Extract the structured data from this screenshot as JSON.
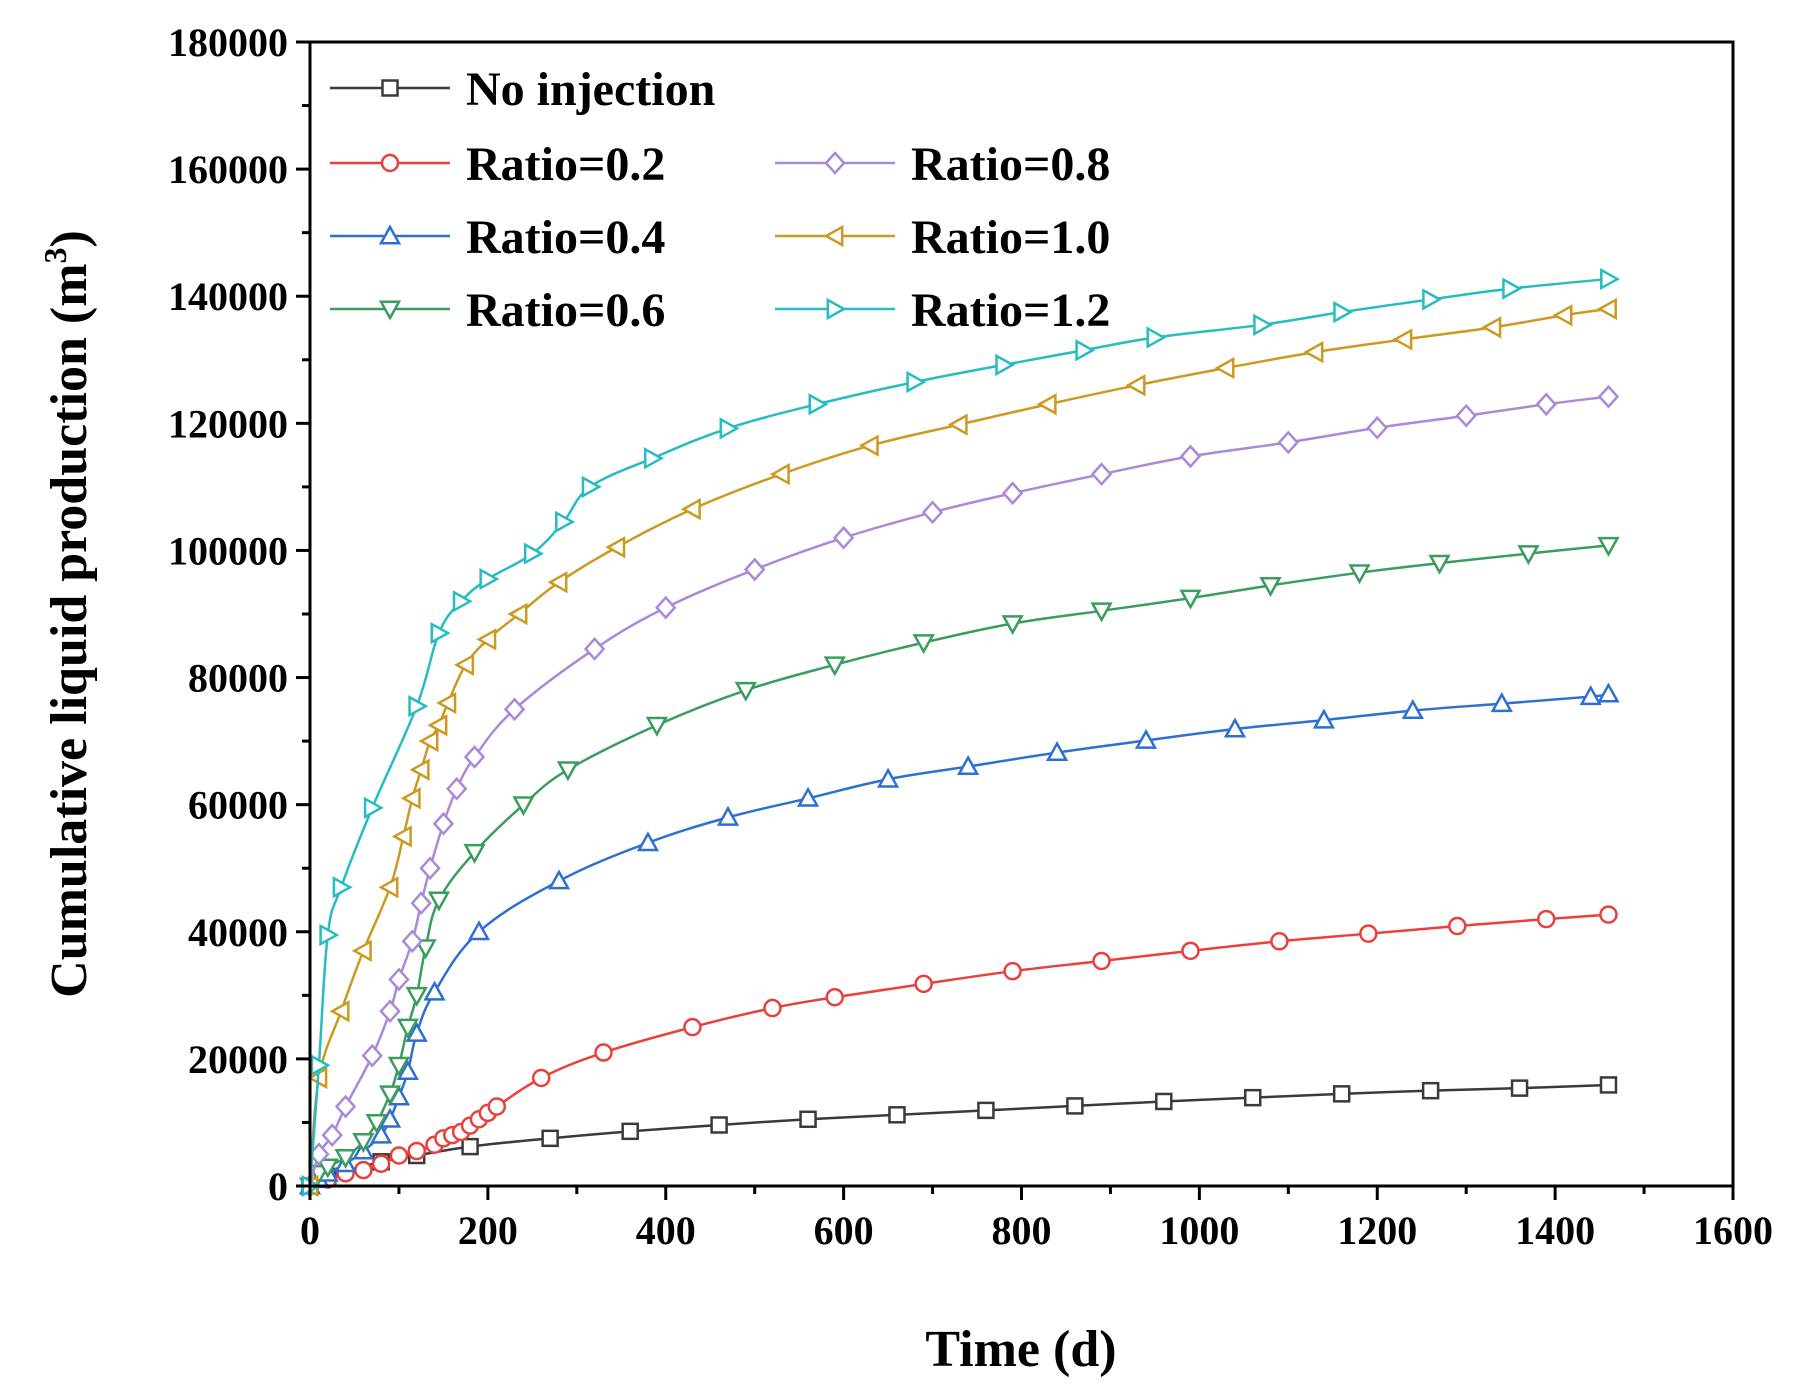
{
  "chart_data": {
    "type": "line",
    "title": "",
    "xlabel": "Time (d)",
    "ylabel": "Cumulative liquid production (m",
    "ylabel_sup": "3",
    "ylabel_close": ")",
    "xlim": [
      0,
      1600
    ],
    "ylim": [
      0,
      180000
    ],
    "x_ticks": [
      0,
      200,
      400,
      600,
      800,
      1000,
      1200,
      1400,
      1600
    ],
    "x_tick_labels": [
      "0",
      "200",
      "400",
      "600",
      "800",
      "1000",
      "1200",
      "1400",
      "1600"
    ],
    "y_ticks": [
      0,
      20000,
      40000,
      60000,
      80000,
      100000,
      120000,
      140000,
      160000,
      180000
    ],
    "y_tick_labels": [
      "0",
      "20000",
      "40000",
      "60000",
      "80000",
      "100000",
      "120000",
      "140000",
      "160000",
      "180000"
    ],
    "legend_position": "top-left",
    "series": [
      {
        "name": "No injection",
        "color": "#3a3a3a",
        "marker": "square",
        "x": [
          0,
          20,
          80,
          120,
          180,
          270,
          360,
          460,
          560,
          660,
          760,
          860,
          960,
          1060,
          1160,
          1260,
          1360,
          1460
        ],
        "y": [
          0,
          1500,
          3800,
          4800,
          6200,
          7500,
          8600,
          9600,
          10500,
          11200,
          11900,
          12600,
          13300,
          13900,
          14500,
          15000,
          15400,
          15900
        ]
      },
      {
        "name": "Ratio=0.2",
        "color": "#e8413c",
        "marker": "circle",
        "x": [
          0,
          20,
          40,
          60,
          80,
          100,
          120,
          140,
          150,
          160,
          170,
          180,
          190,
          200,
          210,
          260,
          330,
          430,
          520,
          590,
          690,
          790,
          890,
          990,
          1090,
          1190,
          1290,
          1390,
          1460
        ],
        "y": [
          0,
          1000,
          2000,
          2500,
          3500,
          4800,
          5500,
          6500,
          7500,
          8000,
          8500,
          9500,
          10500,
          11500,
          12500,
          17000,
          21000,
          25000,
          28000,
          29700,
          31800,
          33800,
          35400,
          37000,
          38500,
          39700,
          40900,
          42000,
          42700
        ]
      },
      {
        "name": "Ratio=0.4",
        "color": "#2e6fd0",
        "marker": "triangle-up",
        "x": [
          0,
          10,
          20,
          40,
          60,
          80,
          90,
          100,
          110,
          120,
          140,
          190,
          280,
          380,
          470,
          560,
          650,
          740,
          840,
          940,
          1040,
          1140,
          1240,
          1340,
          1440,
          1460
        ],
        "y": [
          0,
          1000,
          2000,
          3500,
          5500,
          8000,
          10500,
          14000,
          18000,
          24000,
          30500,
          40000,
          48000,
          54000,
          58000,
          61000,
          64000,
          66000,
          68200,
          70100,
          71900,
          73300,
          74800,
          75900,
          77000,
          77400
        ]
      },
      {
        "name": "Ratio=0.6",
        "color": "#3a9d5d",
        "marker": "triangle-down",
        "x": [
          0,
          10,
          20,
          40,
          60,
          75,
          90,
          100,
          110,
          120,
          130,
          145,
          185,
          240,
          290,
          390,
          490,
          590,
          690,
          790,
          890,
          990,
          1080,
          1180,
          1270,
          1370,
          1460
        ],
        "y": [
          0,
          2000,
          3000,
          4500,
          7000,
          10000,
          14500,
          19000,
          25000,
          30000,
          37500,
          45000,
          52500,
          60000,
          65500,
          72500,
          78000,
          82000,
          85500,
          88500,
          90500,
          92500,
          94500,
          96500,
          98000,
          99500,
          100800
        ]
      },
      {
        "name": "Ratio=0.8",
        "color": "#a989d8",
        "marker": "diamond",
        "x": [
          0,
          10,
          25,
          40,
          70,
          90,
          100,
          115,
          125,
          135,
          150,
          165,
          185,
          230,
          320,
          400,
          500,
          600,
          700,
          790,
          890,
          990,
          1100,
          1200,
          1300,
          1390,
          1460
        ],
        "y": [
          0,
          5000,
          8000,
          12500,
          20500,
          27500,
          32500,
          38500,
          44500,
          50000,
          57000,
          62500,
          67500,
          75000,
          84500,
          91000,
          97000,
          102000,
          106000,
          109000,
          112000,
          114800,
          117000,
          119300,
          121200,
          123000,
          124200
        ]
      },
      {
        "name": "Ratio=1.0",
        "color": "#cc9a22",
        "marker": "triangle-left",
        "x": [
          0,
          10,
          35,
          60,
          90,
          105,
          115,
          125,
          135,
          145,
          155,
          175,
          200,
          235,
          280,
          345,
          430,
          530,
          630,
          730,
          830,
          930,
          1030,
          1130,
          1230,
          1330,
          1410,
          1460
        ],
        "y": [
          0,
          17000,
          27500,
          37000,
          47000,
          55000,
          61000,
          65500,
          70000,
          72500,
          76000,
          82000,
          86000,
          90000,
          95000,
          100500,
          106500,
          112000,
          116500,
          119800,
          123000,
          126000,
          128700,
          131200,
          133200,
          135100,
          137000,
          138000
        ]
      },
      {
        "name": "Ratio=1.2",
        "color": "#27bcc4",
        "marker": "triangle-right",
        "x": [
          0,
          10,
          20,
          35,
          70,
          120,
          145,
          170,
          200,
          250,
          285,
          315,
          385,
          470,
          570,
          680,
          780,
          870,
          950,
          1070,
          1160,
          1260,
          1350,
          1460
        ],
        "y": [
          0,
          19000,
          39500,
          47000,
          59500,
          75500,
          87000,
          92000,
          95500,
          99500,
          104500,
          110000,
          114500,
          119200,
          123000,
          126500,
          129200,
          131500,
          133500,
          135500,
          137500,
          139500,
          141200,
          142700
        ]
      }
    ]
  }
}
